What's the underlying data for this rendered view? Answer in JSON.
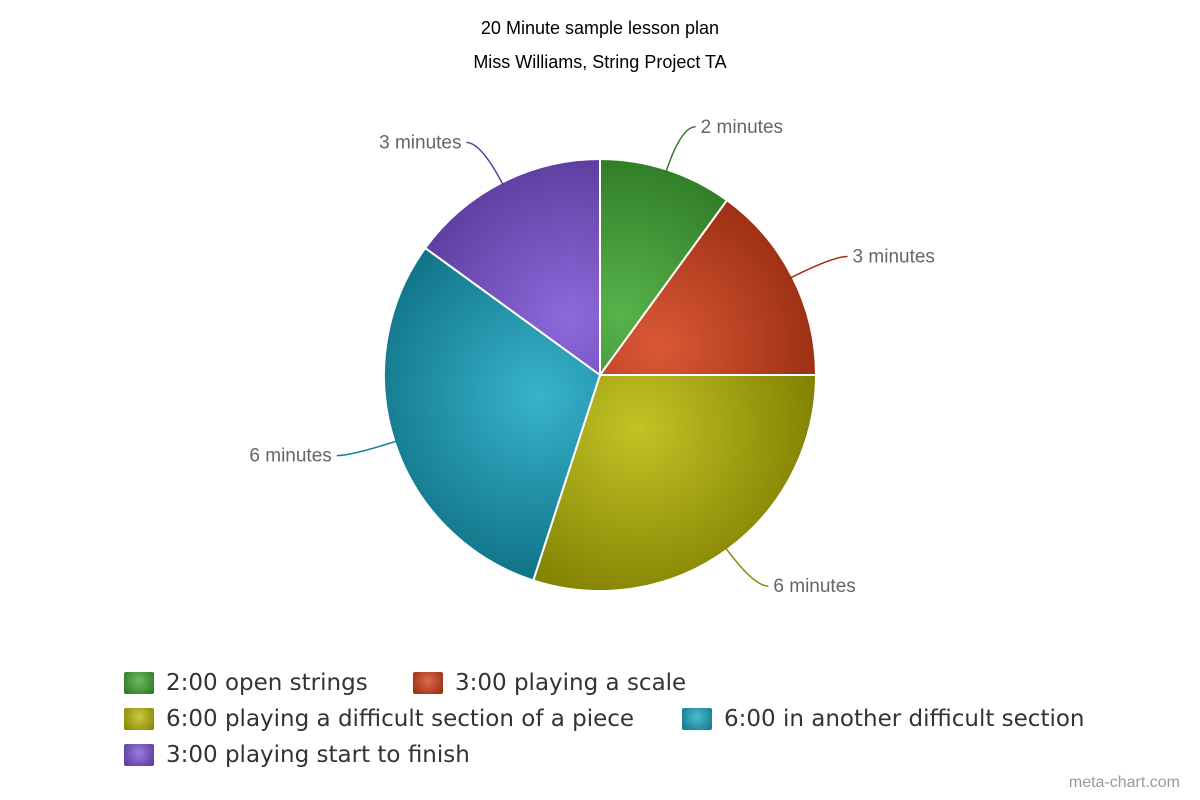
{
  "chart_data": {
    "type": "pie",
    "title": "20 Minute sample lesson plan",
    "subtitle": "Miss Williams, String Project TA",
    "categories": [
      "2:00 open strings",
      "3:00 playing a scale",
      "6:00 playing a difficult section of a piece",
      "6:00 in another difficult section",
      "3:00 playing start to finish"
    ],
    "values": [
      2,
      3,
      6,
      6,
      3
    ],
    "data_labels": [
      "2 minutes",
      "3 minutes",
      "6 minutes",
      "6 minutes",
      "3 minutes"
    ],
    "colors": [
      "#3aa52c",
      "#d43a12",
      "#b8b800",
      "#14a5c2",
      "#7a4fd6"
    ],
    "legend_position": "bottom-left"
  },
  "credit": "meta-chart.com"
}
